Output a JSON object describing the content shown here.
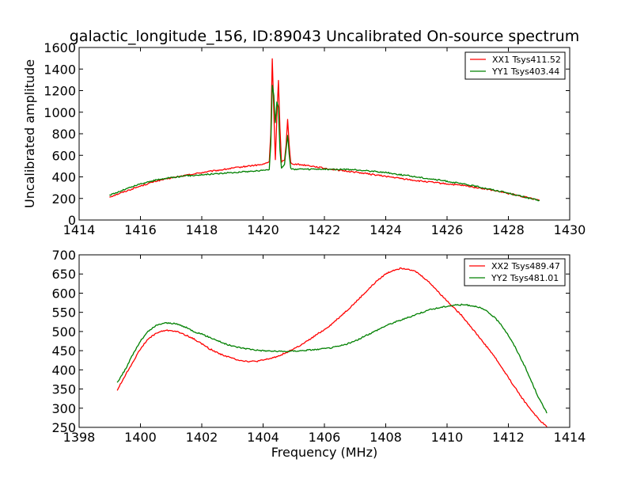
{
  "figure": {
    "title": "galactic_longitude_156, ID:89043 Uncalibrated On-source spectrum"
  },
  "colors": {
    "red": "#ff0000",
    "green": "#008000"
  },
  "chart_data": [
    {
      "type": "line",
      "xlabel": "",
      "ylabel": "Uncalibrated amplitude",
      "xlim": [
        1414,
        1430
      ],
      "ylim": [
        0,
        1600
      ],
      "xticks": [
        1414,
        1416,
        1418,
        1420,
        1422,
        1424,
        1426,
        1428,
        1430
      ],
      "yticks": [
        0,
        200,
        400,
        600,
        800,
        1000,
        1200,
        1400,
        1600
      ],
      "legend_position": "top-right",
      "grid": false,
      "series": [
        {
          "name": "XX1 Tsys411.52",
          "color": "#ff0000",
          "x": [
            1415.0,
            1415.5,
            1416.0,
            1416.5,
            1417.0,
            1417.5,
            1418.0,
            1418.5,
            1419.0,
            1419.5,
            1420.0,
            1420.2,
            1420.25,
            1420.3,
            1420.35,
            1420.4,
            1420.45,
            1420.5,
            1420.55,
            1420.6,
            1420.7,
            1420.75,
            1420.8,
            1420.85,
            1420.9,
            1421.0,
            1421.5,
            1422.0,
            1422.5,
            1423.0,
            1423.5,
            1424.0,
            1424.5,
            1425.0,
            1425.5,
            1426.0,
            1426.5,
            1427.0,
            1427.5,
            1428.0,
            1428.5,
            1429.0
          ],
          "y": [
            215,
            265,
            315,
            360,
            390,
            415,
            440,
            460,
            480,
            500,
            515,
            540,
            800,
            1500,
            1000,
            560,
            950,
            1300,
            850,
            540,
            560,
            700,
            930,
            700,
            530,
            520,
            505,
            480,
            460,
            445,
            425,
            405,
            385,
            365,
            350,
            335,
            320,
            300,
            275,
            245,
            215,
            185
          ]
        },
        {
          "name": "YY1 Tsys403.44",
          "color": "#008000",
          "x": [
            1415.0,
            1415.5,
            1416.0,
            1416.5,
            1417.0,
            1417.5,
            1418.0,
            1418.5,
            1419.0,
            1419.5,
            1420.0,
            1420.2,
            1420.25,
            1420.3,
            1420.35,
            1420.4,
            1420.45,
            1420.5,
            1420.55,
            1420.6,
            1420.7,
            1420.75,
            1420.8,
            1420.85,
            1420.9,
            1421.0,
            1421.5,
            1422.0,
            1422.5,
            1423.0,
            1423.5,
            1424.0,
            1424.5,
            1425.0,
            1425.5,
            1426.0,
            1426.5,
            1427.0,
            1427.5,
            1428.0,
            1428.5,
            1429.0
          ],
          "y": [
            230,
            285,
            335,
            370,
            395,
            410,
            420,
            430,
            440,
            450,
            460,
            470,
            700,
            1250,
            1150,
            900,
            1100,
            1050,
            650,
            480,
            520,
            650,
            780,
            620,
            480,
            470,
            470,
            470,
            470,
            465,
            455,
            440,
            420,
            400,
            380,
            360,
            335,
            310,
            280,
            250,
            215,
            180
          ]
        }
      ]
    },
    {
      "type": "line",
      "xlabel": "Frequency (MHz)",
      "ylabel": "",
      "xlim": [
        1398,
        1414
      ],
      "ylim": [
        250,
        700
      ],
      "xticks": [
        1398,
        1400,
        1402,
        1404,
        1406,
        1408,
        1410,
        1412,
        1414
      ],
      "yticks": [
        250,
        300,
        350,
        400,
        450,
        500,
        550,
        600,
        650,
        700
      ],
      "legend_position": "top-right",
      "grid": false,
      "series": [
        {
          "name": "XX2 Tsys489.47",
          "color": "#ff0000",
          "x": [
            1399.25,
            1399.5,
            1399.75,
            1400.0,
            1400.25,
            1400.5,
            1400.75,
            1401.0,
            1401.25,
            1401.5,
            1401.75,
            1402.0,
            1402.25,
            1402.5,
            1402.75,
            1403.0,
            1403.25,
            1403.5,
            1403.75,
            1404.0,
            1404.25,
            1404.5,
            1404.75,
            1405.0,
            1405.25,
            1405.5,
            1405.75,
            1406.0,
            1406.25,
            1406.5,
            1406.75,
            1407.0,
            1407.25,
            1407.5,
            1407.75,
            1408.0,
            1408.25,
            1408.5,
            1408.75,
            1409.0,
            1409.25,
            1409.5,
            1409.75,
            1410.0,
            1410.25,
            1410.5,
            1410.75,
            1411.0,
            1411.25,
            1411.5,
            1411.75,
            1412.0,
            1412.25,
            1412.5,
            1412.75,
            1413.0,
            1413.25
          ],
          "y": [
            348,
            385,
            420,
            455,
            480,
            495,
            502,
            503,
            498,
            490,
            480,
            468,
            455,
            445,
            437,
            430,
            425,
            422,
            422,
            425,
            430,
            436,
            445,
            455,
            465,
            478,
            492,
            505,
            520,
            538,
            556,
            575,
            595,
            615,
            635,
            650,
            660,
            665,
            663,
            655,
            640,
            622,
            600,
            580,
            560,
            540,
            515,
            490,
            465,
            440,
            410,
            380,
            350,
            320,
            295,
            270,
            252
          ]
        },
        {
          "name": "YY2 Tsys481.01",
          "color": "#008000",
          "x": [
            1399.25,
            1399.5,
            1399.75,
            1400.0,
            1400.25,
            1400.5,
            1400.75,
            1401.0,
            1401.25,
            1401.5,
            1401.75,
            1402.0,
            1402.25,
            1402.5,
            1402.75,
            1403.0,
            1403.25,
            1403.5,
            1403.75,
            1404.0,
            1404.25,
            1404.5,
            1404.75,
            1405.0,
            1405.25,
            1405.5,
            1405.75,
            1406.0,
            1406.25,
            1406.5,
            1406.75,
            1407.0,
            1407.25,
            1407.5,
            1407.75,
            1408.0,
            1408.25,
            1408.5,
            1408.75,
            1409.0,
            1409.25,
            1409.5,
            1409.75,
            1410.0,
            1410.25,
            1410.5,
            1410.75,
            1411.0,
            1411.25,
            1411.5,
            1411.75,
            1412.0,
            1412.25,
            1412.5,
            1412.75,
            1413.0,
            1413.25
          ],
          "y": [
            368,
            400,
            440,
            475,
            500,
            515,
            522,
            522,
            518,
            510,
            500,
            493,
            485,
            477,
            468,
            462,
            458,
            455,
            452,
            450,
            449,
            448,
            448,
            449,
            450,
            452,
            453,
            455,
            458,
            462,
            468,
            475,
            485,
            495,
            505,
            515,
            523,
            530,
            537,
            545,
            552,
            558,
            562,
            566,
            569,
            570,
            568,
            565,
            555,
            540,
            520,
            490,
            455,
            415,
            370,
            325,
            288
          ]
        }
      ]
    }
  ]
}
